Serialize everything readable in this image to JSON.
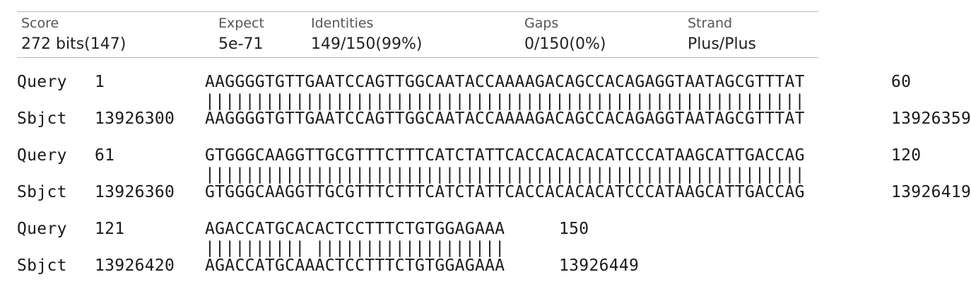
{
  "summary": {
    "score": {
      "label": "Score",
      "value": "272 bits(147)"
    },
    "expect": {
      "label": "Expect",
      "value": "5e-71"
    },
    "identities": {
      "label": "Identities",
      "value": "149/150(99%)"
    },
    "gaps": {
      "label": "Gaps",
      "value": "0/150(0%)"
    },
    "strand": {
      "label": "Strand",
      "value": "Plus/Plus"
    }
  },
  "blocks": [
    {
      "query": {
        "label": "Query",
        "start": "1",
        "seq": "AAGGGGTGTTGAATCCAGTTGGCAATACCAAAAGACAGCCACAGAGGTAATAGCGTTTAT",
        "end": "60"
      },
      "midline": "||||||||||||||||||||||||||||||||||||||||||||||||||||||||||||",
      "sbjct": {
        "label": "Sbjct",
        "start": "13926300",
        "seq": "AAGGGGTGTTGAATCCAGTTGGCAATACCAAAAGACAGCCACAGAGGTAATAGCGTTTAT",
        "end": "13926359"
      }
    },
    {
      "query": {
        "label": "Query",
        "start": "61",
        "seq": "GTGGGCAAGGTTGCGTTTCTTTCATCTATTCACCACACACATCCCATAAGCATTGACCAG",
        "end": "120"
      },
      "midline": "||||||||||||||||||||||||||||||||||||||||||||||||||||||||||||",
      "sbjct": {
        "label": "Sbjct",
        "start": "13926360",
        "seq": "GTGGGCAAGGTTGCGTTTCTTTCATCTATTCACCACACACATCCCATAAGCATTGACCAG",
        "end": "13926419"
      }
    },
    {
      "query": {
        "label": "Query",
        "start": "121",
        "seq": "AGACCATGCACACTCCTTTCTGTGGAGAAA",
        "end": "150"
      },
      "midline": "|||||||||| |||||||||||||||||||",
      "sbjct": {
        "label": "Sbjct",
        "start": "13926420",
        "seq": "AGACCATGCAAACTCCTTTCTGTGGAGAAA",
        "end": "13926449"
      }
    }
  ]
}
